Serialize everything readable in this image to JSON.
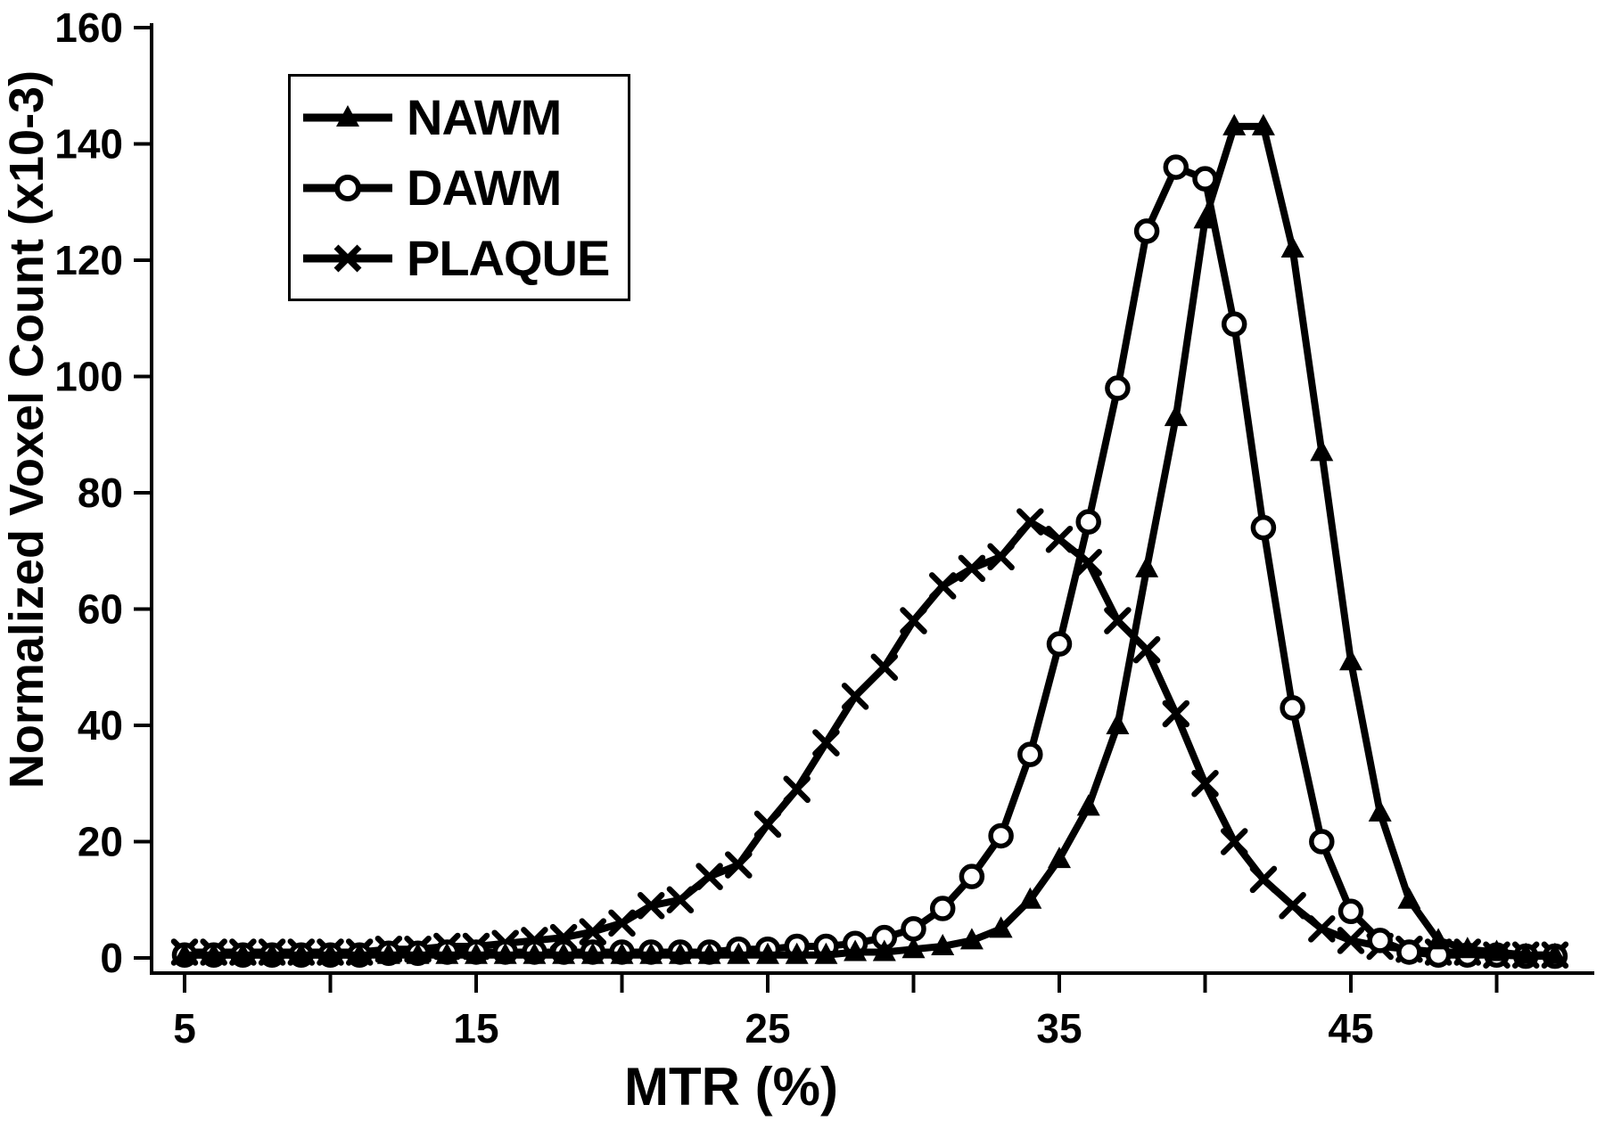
{
  "figure": {
    "background": "#ffffff",
    "ink_color": "#000000"
  },
  "legend": {
    "position": "top-left",
    "items": [
      {
        "label": "NAWM",
        "marker": "triangle"
      },
      {
        "label": "DAWM",
        "marker": "circle"
      },
      {
        "label": "PLAQUE",
        "marker": "x"
      }
    ]
  },
  "chart_data": {
    "type": "line",
    "title": "",
    "xlabel": "MTR (%)",
    "ylabel": "Normalized Voxel Count (x10-3)",
    "xlim": [
      4,
      53
    ],
    "ylim": [
      0,
      160
    ],
    "grid": false,
    "legend_position": "top-left",
    "x_ticks_all": [
      5,
      10,
      15,
      20,
      25,
      30,
      35,
      40,
      45,
      50
    ],
    "x_ticks_labeled": [
      5,
      15,
      25,
      35,
      45
    ],
    "y_ticks": [
      0,
      20,
      40,
      60,
      80,
      100,
      120,
      140,
      160
    ],
    "x": [
      5,
      6,
      7,
      8,
      9,
      10,
      11,
      12,
      13,
      14,
      15,
      16,
      17,
      18,
      19,
      20,
      21,
      22,
      23,
      24,
      25,
      26,
      27,
      28,
      29,
      30,
      31,
      32,
      33,
      34,
      35,
      36,
      37,
      38,
      39,
      40,
      41,
      42,
      43,
      44,
      45,
      46,
      47,
      48,
      49,
      50,
      51,
      52
    ],
    "series": [
      {
        "name": "NAWM",
        "marker": "triangle",
        "values": [
          0.5,
          0.5,
          0.5,
          0.5,
          0.5,
          0.5,
          0.5,
          0.5,
          0.5,
          0.5,
          0.5,
          0.5,
          0.5,
          0.5,
          0.5,
          0.5,
          0.5,
          0.5,
          0.5,
          0.5,
          0.5,
          0.5,
          0.5,
          1,
          1,
          1.5,
          2,
          3,
          5,
          10,
          17,
          26,
          40,
          67,
          93,
          127,
          143,
          143,
          122,
          87,
          51,
          25,
          10,
          3,
          1.5,
          1,
          0.5,
          0.5
        ]
      },
      {
        "name": "DAWM",
        "marker": "circle",
        "values": [
          0.5,
          0.5,
          0.5,
          0.5,
          0.5,
          0.5,
          0.5,
          0.8,
          0.8,
          1,
          1,
          1,
          1,
          1,
          1,
          1,
          1,
          1,
          1,
          1.5,
          1.5,
          2,
          2,
          2.5,
          3.5,
          5,
          8.5,
          14,
          21,
          35,
          54,
          75,
          98,
          125,
          136,
          134,
          109,
          74,
          43,
          20,
          8,
          3,
          1,
          0.5,
          0.5,
          0.5,
          0.3,
          0.3
        ]
      },
      {
        "name": "PLAQUE",
        "marker": "x",
        "values": [
          1,
          1,
          1,
          1,
          1,
          1,
          1,
          1.5,
          1.5,
          2,
          2,
          2.5,
          3,
          3.5,
          4.5,
          6,
          9,
          10,
          14,
          16,
          23,
          29,
          37,
          45,
          50,
          58,
          64,
          67,
          69,
          75,
          72,
          68,
          58,
          53,
          42,
          30,
          20,
          13.5,
          9,
          5,
          3,
          2,
          1.5,
          1,
          1,
          0.5,
          0.5,
          0.5
        ]
      }
    ]
  }
}
